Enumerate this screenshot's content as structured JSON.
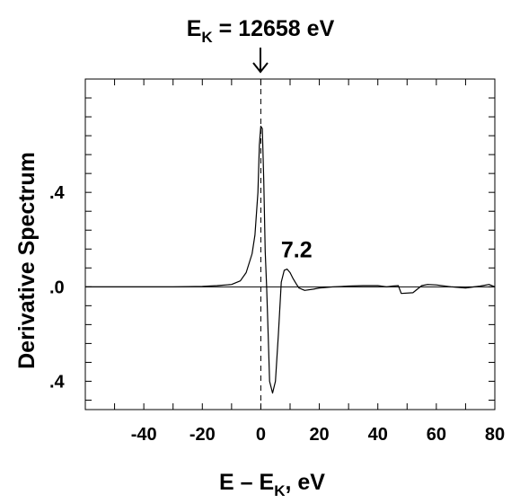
{
  "chart_data": {
    "type": "line",
    "title_main": "E",
    "title_sub": "K",
    "title_rest": " = 12658 eV",
    "xlabel_main": "E – E",
    "xlabel_sub": "K",
    "xlabel_rest": ", eV",
    "ylabel": "Derivative Spectrum",
    "xlim": [
      -60,
      80
    ],
    "ylim": [
      -0.52,
      0.88
    ],
    "x_ticks": [
      {
        "value": -40,
        "label": "-40"
      },
      {
        "value": -20,
        "label": "-20"
      },
      {
        "value": 0,
        "label": "0"
      },
      {
        "value": 20,
        "label": "20"
      },
      {
        "value": 40,
        "label": "40"
      },
      {
        "value": 60,
        "label": "60"
      },
      {
        "value": 80,
        "label": "80"
      }
    ],
    "y_ticks": [
      {
        "value": 0.4,
        "label": ".4"
      },
      {
        "value": 0.0,
        "label": ".0"
      },
      {
        "value": -0.4,
        "label": ".4"
      }
    ],
    "annotation": {
      "text": "7.2",
      "x": 7.2,
      "y": 0.16
    },
    "edge_marker_x": 0,
    "series": [
      {
        "x": [
          -60,
          -30,
          -20,
          -15,
          -10,
          -7,
          -5,
          -3,
          -2,
          -1,
          -0.5,
          0,
          0.5,
          1,
          1.5,
          2,
          2.5,
          3,
          4,
          5,
          6,
          7,
          8,
          9,
          10,
          11,
          12,
          13,
          15,
          18,
          20,
          25,
          30,
          35,
          40,
          43,
          45,
          47,
          48,
          52,
          55,
          57,
          60,
          65,
          70,
          75,
          78,
          80
        ],
        "y": [
          0,
          0,
          0.002,
          0.005,
          0.01,
          0.025,
          0.06,
          0.14,
          0.22,
          0.4,
          0.6,
          0.68,
          0.67,
          0.45,
          0.15,
          0,
          -0.2,
          -0.4,
          -0.45,
          -0.4,
          -0.2,
          0.02,
          0.07,
          0.075,
          0.06,
          0.035,
          0.015,
          -0.005,
          -0.015,
          -0.01,
          -0.005,
          0,
          0.003,
          0.005,
          0.005,
          0,
          0.003,
          0.005,
          -0.028,
          -0.025,
          0.005,
          0.01,
          0.008,
          0,
          -0.005,
          0.003,
          0.01,
          0
        ]
      }
    ]
  }
}
